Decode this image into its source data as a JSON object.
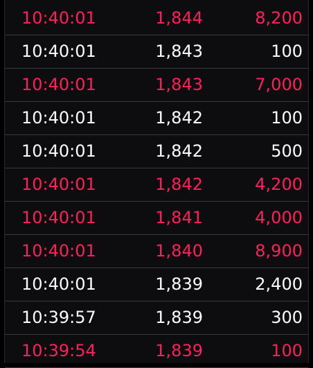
{
  "colors": {
    "background": "#0d0d0f",
    "up": "#ff1f5a",
    "flat": "#ffffff",
    "divider": "#3a3a3c"
  },
  "ticks": [
    {
      "time": "10:40:01",
      "price": "1,844",
      "qty": "8,200",
      "side": "up"
    },
    {
      "time": "10:40:01",
      "price": "1,843",
      "qty": "100",
      "side": "flat"
    },
    {
      "time": "10:40:01",
      "price": "1,843",
      "qty": "7,000",
      "side": "up"
    },
    {
      "time": "10:40:01",
      "price": "1,842",
      "qty": "100",
      "side": "flat"
    },
    {
      "time": "10:40:01",
      "price": "1,842",
      "qty": "500",
      "side": "flat"
    },
    {
      "time": "10:40:01",
      "price": "1,842",
      "qty": "4,200",
      "side": "up"
    },
    {
      "time": "10:40:01",
      "price": "1,841",
      "qty": "4,000",
      "side": "up"
    },
    {
      "time": "10:40:01",
      "price": "1,840",
      "qty": "8,900",
      "side": "up"
    },
    {
      "time": "10:40:01",
      "price": "1,839",
      "qty": "2,400",
      "side": "flat"
    },
    {
      "time": "10:39:57",
      "price": "1,839",
      "qty": "300",
      "side": "flat"
    },
    {
      "time": "10:39:54",
      "price": "1,839",
      "qty": "100",
      "side": "up"
    }
  ]
}
